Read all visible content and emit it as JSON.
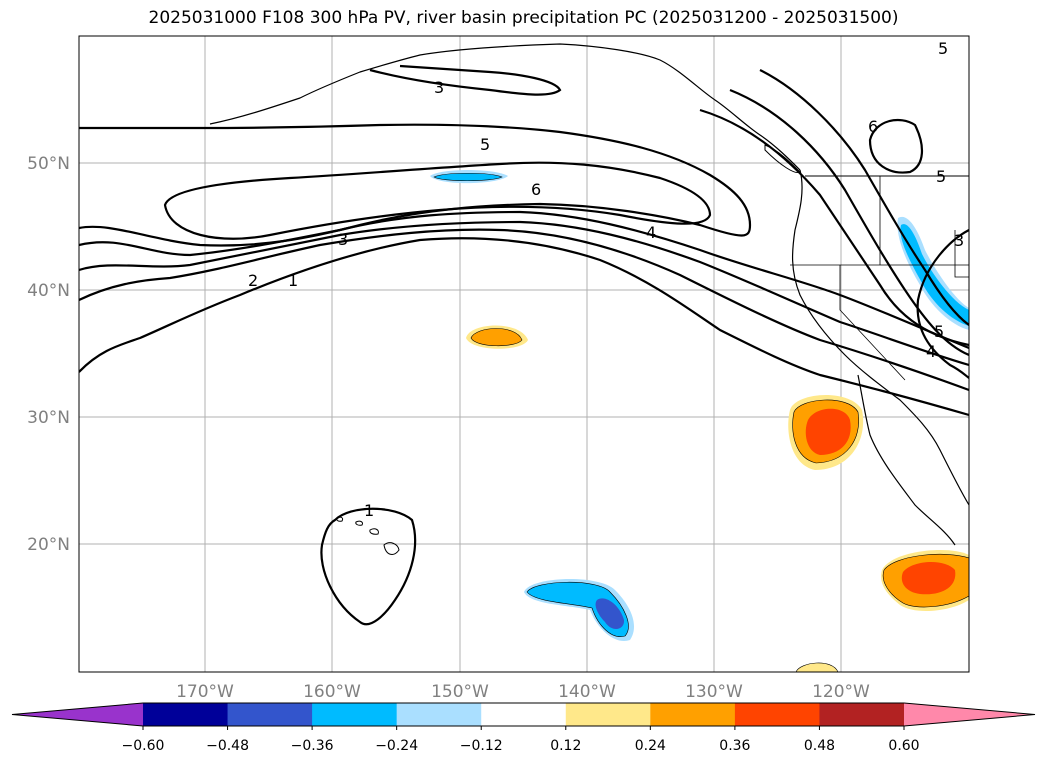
{
  "title": "2025031000 F108 300 hPa PV, river basin precipitation PC (2025031200 - 2025031500)",
  "lat_labels": [
    "50°N",
    "40°N",
    "30°N",
    "20°N"
  ],
  "lon_labels": [
    "170°W",
    "160°W",
    "150°W",
    "140°W",
    "130°W",
    "120°W"
  ],
  "contour_labels": [
    "3",
    "5",
    "6",
    "4",
    "3",
    "2",
    "1",
    "1",
    "5",
    "6",
    "5",
    "3",
    "4",
    "5"
  ],
  "colorbar": {
    "ticks": [
      "−0.60",
      "−0.48",
      "−0.36",
      "−0.24",
      "−0.12",
      "0.12",
      "0.24",
      "0.36",
      "0.48",
      "0.60"
    ],
    "colors": [
      "#9933cc",
      "#000099",
      "#3355cc",
      "#00bbff",
      "#aadfff",
      "#ffffff",
      "#ffe88a",
      "#ffa000",
      "#ff4400",
      "#b22222",
      "#ff88aa"
    ]
  }
}
